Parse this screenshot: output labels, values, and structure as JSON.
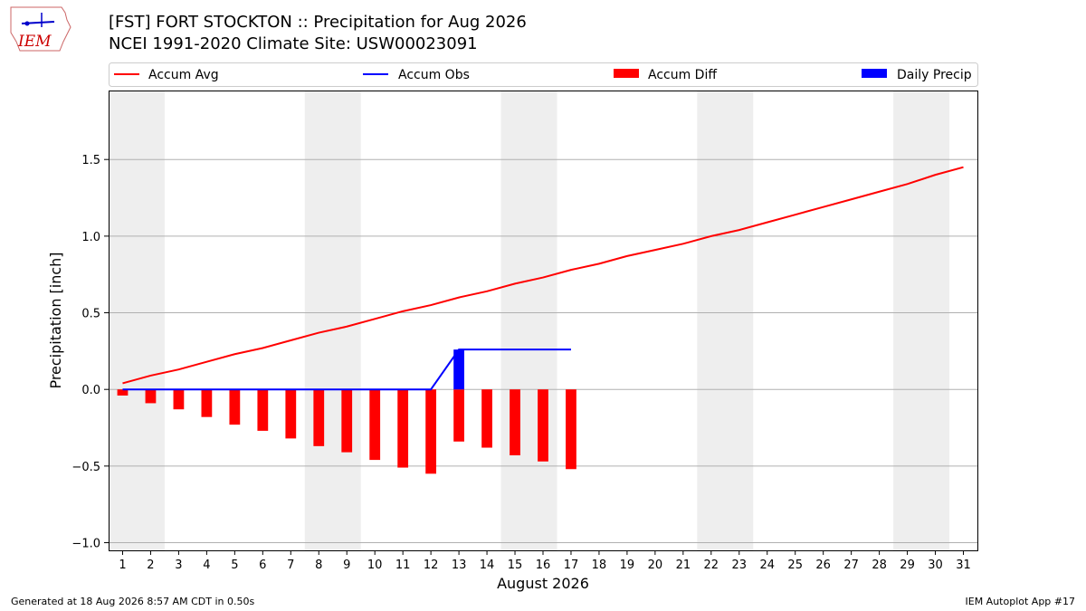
{
  "title": {
    "line1": "[FST] FORT STOCKTON :: Precipitation for Aug 2026",
    "line2": "NCEI 1991-2020 Climate Site: USW00023091"
  },
  "logo": {
    "text": "IEM",
    "icon": "iowa-state-weather-logo"
  },
  "footer": {
    "left": "Generated at 18 Aug 2026 8:57 AM CDT in 0.50s",
    "right": "IEM Autoplot App #17"
  },
  "colors": {
    "accum_avg": "#ff0000",
    "accum_obs": "#0000ff",
    "accum_diff": "#ff0000",
    "daily_precip": "#0000ff",
    "weekend_band": "#eeeeee",
    "grid": "#b0b0b0"
  },
  "chart_data": {
    "type": "line",
    "title": "[FST] FORT STOCKTON :: Precipitation for Aug 2026",
    "subtitle": "NCEI 1991-2020 Climate Site: USW00023091",
    "xlabel": "August 2026",
    "ylabel": "Precipitation [inch]",
    "xlim": [
      0.5,
      31.5
    ],
    "ylim": [
      -1.05,
      1.95
    ],
    "grid": true,
    "legend_position": "top",
    "x": [
      1,
      2,
      3,
      4,
      5,
      6,
      7,
      8,
      9,
      10,
      11,
      12,
      13,
      14,
      15,
      16,
      17,
      18,
      19,
      20,
      21,
      22,
      23,
      24,
      25,
      26,
      27,
      28,
      29,
      30,
      31
    ],
    "x_tick_labels": [
      "1",
      "2",
      "3",
      "4",
      "5",
      "6",
      "7",
      "8",
      "9",
      "10",
      "11",
      "12",
      "13",
      "14",
      "15",
      "16",
      "17",
      "18",
      "19",
      "20",
      "21",
      "22",
      "23",
      "24",
      "25",
      "26",
      "27",
      "28",
      "29",
      "30",
      "31"
    ],
    "y_ticks": [
      -1.0,
      -0.5,
      0.0,
      0.5,
      1.0,
      1.5
    ],
    "y_tick_labels": [
      "−1.0",
      "−0.5",
      "0.0",
      "0.5",
      "1.0",
      "1.5"
    ],
    "weekend_bands": [
      [
        0.5,
        2.5
      ],
      [
        7.5,
        9.5
      ],
      [
        14.5,
        16.5
      ],
      [
        21.5,
        23.5
      ],
      [
        28.5,
        30.5
      ]
    ],
    "series": [
      {
        "name": "Accum Avg",
        "kind": "line",
        "x": [
          1,
          2,
          3,
          4,
          5,
          6,
          7,
          8,
          9,
          10,
          11,
          12,
          13,
          14,
          15,
          16,
          17,
          18,
          19,
          20,
          21,
          22,
          23,
          24,
          25,
          26,
          27,
          28,
          29,
          30,
          31
        ],
        "values": [
          0.04,
          0.09,
          0.13,
          0.18,
          0.23,
          0.27,
          0.32,
          0.37,
          0.41,
          0.46,
          0.51,
          0.55,
          0.6,
          0.64,
          0.69,
          0.73,
          0.78,
          0.82,
          0.87,
          0.91,
          0.95,
          1.0,
          1.04,
          1.09,
          1.14,
          1.19,
          1.24,
          1.29,
          1.34,
          1.4,
          1.45
        ]
      },
      {
        "name": "Accum Obs",
        "kind": "line",
        "x": [
          1,
          2,
          3,
          4,
          5,
          6,
          7,
          8,
          9,
          10,
          11,
          12,
          13,
          14,
          15,
          16,
          17
        ],
        "values": [
          0,
          0,
          0,
          0,
          0,
          0,
          0,
          0,
          0,
          0,
          0,
          0,
          0.26,
          0.26,
          0.26,
          0.26,
          0.26
        ]
      },
      {
        "name": "Accum Diff",
        "kind": "bar",
        "x": [
          1,
          2,
          3,
          4,
          5,
          6,
          7,
          8,
          9,
          10,
          11,
          12,
          13,
          14,
          15,
          16,
          17
        ],
        "values": [
          -0.04,
          -0.09,
          -0.13,
          -0.18,
          -0.23,
          -0.27,
          -0.32,
          -0.37,
          -0.41,
          -0.46,
          -0.51,
          -0.55,
          -0.34,
          -0.38,
          -0.43,
          -0.47,
          -0.52
        ]
      },
      {
        "name": "Daily Precip",
        "kind": "bar",
        "x": [
          13
        ],
        "values": [
          0.26
        ]
      }
    ]
  }
}
